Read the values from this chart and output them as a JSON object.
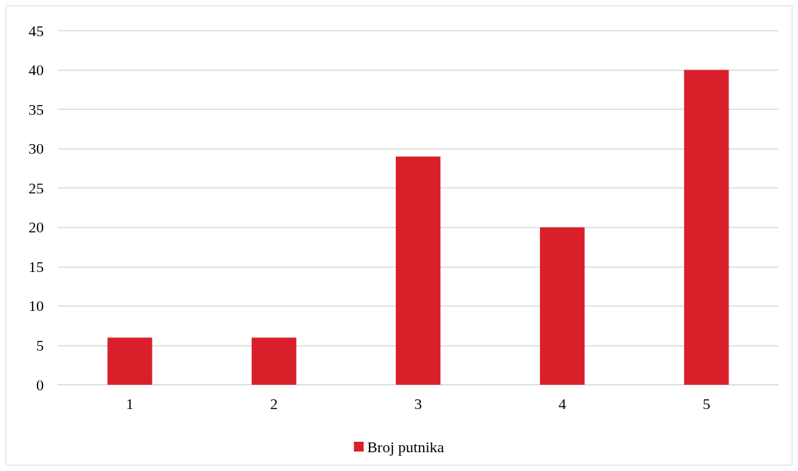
{
  "chart_data": {
    "type": "bar",
    "categories": [
      "1",
      "2",
      "3",
      "4",
      "5"
    ],
    "series": [
      {
        "name": "Broj putnika",
        "color": "#d9202a",
        "values": [
          6,
          6,
          29,
          20,
          40
        ]
      }
    ],
    "ylim": [
      0,
      45
    ],
    "yticks": [
      0,
      5,
      10,
      15,
      20,
      25,
      30,
      35,
      40,
      45
    ],
    "grid": "y",
    "legend": "bottom"
  }
}
